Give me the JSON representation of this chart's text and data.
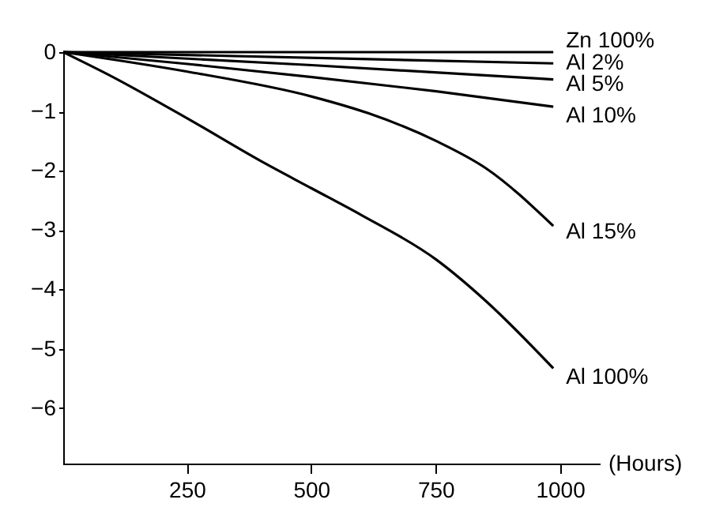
{
  "chart_data": {
    "type": "line",
    "xlabel": "(Hours)",
    "xlim": [
      0,
      1080
    ],
    "ylim": [
      -6.95,
      0
    ],
    "xticks": [
      250,
      500,
      750,
      1000
    ],
    "yticks": [
      {
        "value": 0,
        "label": "0"
      },
      {
        "value": -1,
        "label": "−1"
      },
      {
        "value": -2,
        "label": "−2"
      },
      {
        "value": -3,
        "label": "−3"
      },
      {
        "value": -4,
        "label": "−4"
      },
      {
        "value": -5,
        "label": "−5"
      },
      {
        "value": -6,
        "label": "−6"
      }
    ],
    "grid": false,
    "marker": "none",
    "line_style": "solid",
    "series": [
      {
        "name": "Zn 100%",
        "color": "#000000",
        "x": [
          0,
          985
        ],
        "values": [
          0,
          0
        ]
      },
      {
        "name": "Al 2%",
        "color": "#000000",
        "x": [
          0,
          985
        ],
        "values": [
          0,
          -0.19
        ]
      },
      {
        "name": "Al 5%",
        "color": "#000000",
        "x": [
          0,
          500,
          985
        ],
        "values": [
          0,
          -0.22,
          -0.46
        ]
      },
      {
        "name": "Al 10%",
        "color": "#000000",
        "x": [
          0,
          250,
          500,
          750,
          985
        ],
        "values": [
          0,
          -0.2,
          -0.42,
          -0.66,
          -0.92
        ]
      },
      {
        "name": "Al 15%",
        "color": "#000000",
        "x": [
          0,
          250,
          500,
          613,
          750,
          850,
          985
        ],
        "values": [
          0,
          -0.33,
          -0.75,
          -1.03,
          -1.5,
          -1.96,
          -2.93
        ]
      },
      {
        "name": "Al 100%",
        "color": "#000000",
        "x": [
          0,
          100,
          250,
          400,
          500,
          600,
          750,
          850,
          985
        ],
        "values": [
          0,
          -0.42,
          -1.12,
          -1.85,
          -2.3,
          -2.75,
          -3.5,
          -4.2,
          -5.33
        ]
      }
    ]
  }
}
